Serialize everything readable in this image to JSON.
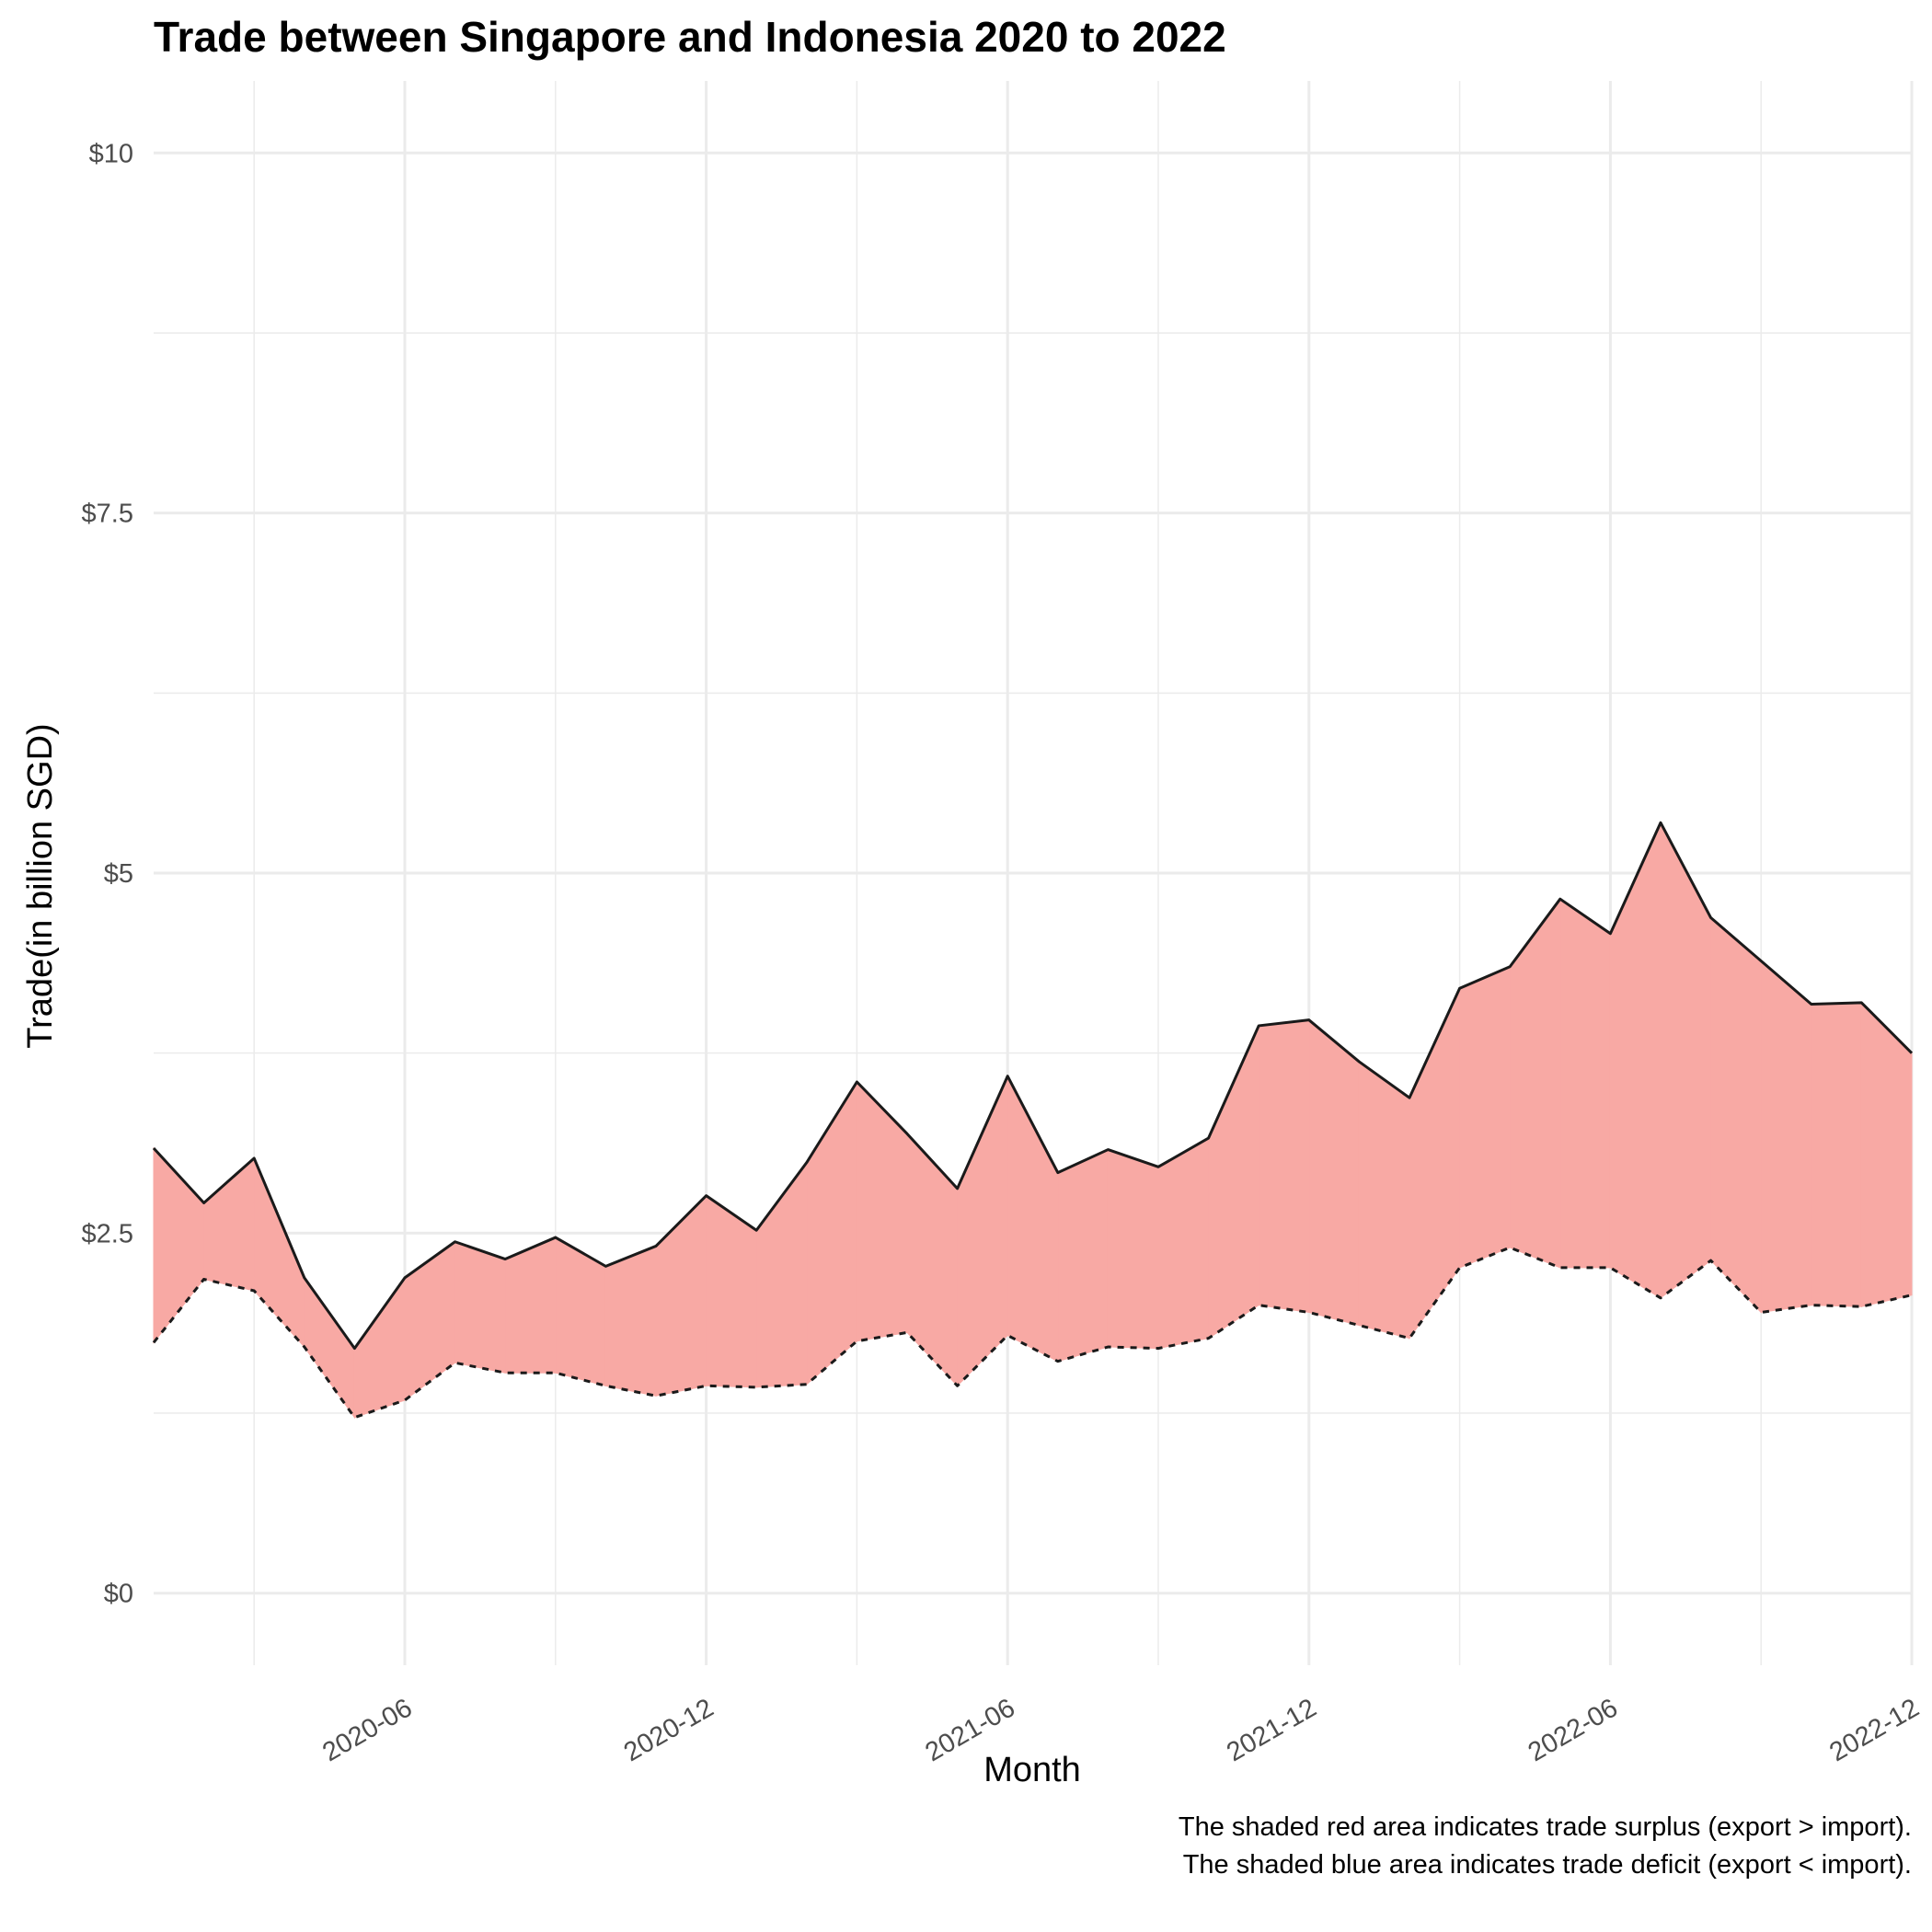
{
  "chart_data": {
    "type": "area",
    "title": "Trade between Singapore and Indonesia  2020 to 2022",
    "xlabel": "Month",
    "ylabel": "Trade(in billion SGD)",
    "x_tick_labels": [
      "2020-06",
      "2020-12",
      "2021-06",
      "2021-12",
      "2022-06",
      "2022-12"
    ],
    "y_tick_labels": [
      "$0",
      "$2.5",
      "$5",
      "$7.5",
      "$10"
    ],
    "y_ticks": [
      0,
      2.5,
      5,
      7.5,
      10
    ],
    "ylim": [
      -0.5,
      10.5
    ],
    "xlim": [
      "2020-01",
      "2022-12"
    ],
    "grid": true,
    "x": [
      "2020-01",
      "2020-02",
      "2020-03",
      "2020-04",
      "2020-05",
      "2020-06",
      "2020-07",
      "2020-08",
      "2020-09",
      "2020-10",
      "2020-11",
      "2020-12",
      "2021-01",
      "2021-02",
      "2021-03",
      "2021-04",
      "2021-05",
      "2021-06",
      "2021-07",
      "2021-08",
      "2021-09",
      "2021-10",
      "2021-11",
      "2021-12",
      "2022-01",
      "2022-02",
      "2022-03",
      "2022-04",
      "2022-05",
      "2022-06",
      "2022-07",
      "2022-08",
      "2022-09",
      "2022-10",
      "2022-11",
      "2022-12"
    ],
    "series": [
      {
        "line_style": "solid",
        "values": [
          3.09,
          2.71,
          3.02,
          2.19,
          1.7,
          2.19,
          2.44,
          2.32,
          2.47,
          2.27,
          2.41,
          2.76,
          2.52,
          2.99,
          3.55,
          3.19,
          2.81,
          3.59,
          2.92,
          3.08,
          2.96,
          3.16,
          3.94,
          3.98,
          3.69,
          3.44,
          4.2,
          4.35,
          4.82,
          4.58,
          5.35,
          4.69,
          4.39,
          4.09,
          4.1,
          3.75
        ]
      },
      {
        "line_style": "dashed",
        "values": [
          1.74,
          2.18,
          2.1,
          1.71,
          1.22,
          1.34,
          1.6,
          1.53,
          1.53,
          1.44,
          1.37,
          1.44,
          1.43,
          1.45,
          1.75,
          1.81,
          1.44,
          1.79,
          1.61,
          1.71,
          1.7,
          1.77,
          2.0,
          1.95,
          1.86,
          1.77,
          2.26,
          2.4,
          2.26,
          2.26,
          2.05,
          2.31,
          1.95,
          2.0,
          1.99,
          2.07
        ]
      }
    ],
    "fill_colors": {
      "surplus": "#f8a9a4",
      "deficit": "#9ab8f0"
    },
    "line_color": "#1a1a1a",
    "caption_lines": [
      "The shaded red area indicates trade surplus (export > import).",
      "The shaded blue area indicates trade deficit (export < import)."
    ]
  }
}
